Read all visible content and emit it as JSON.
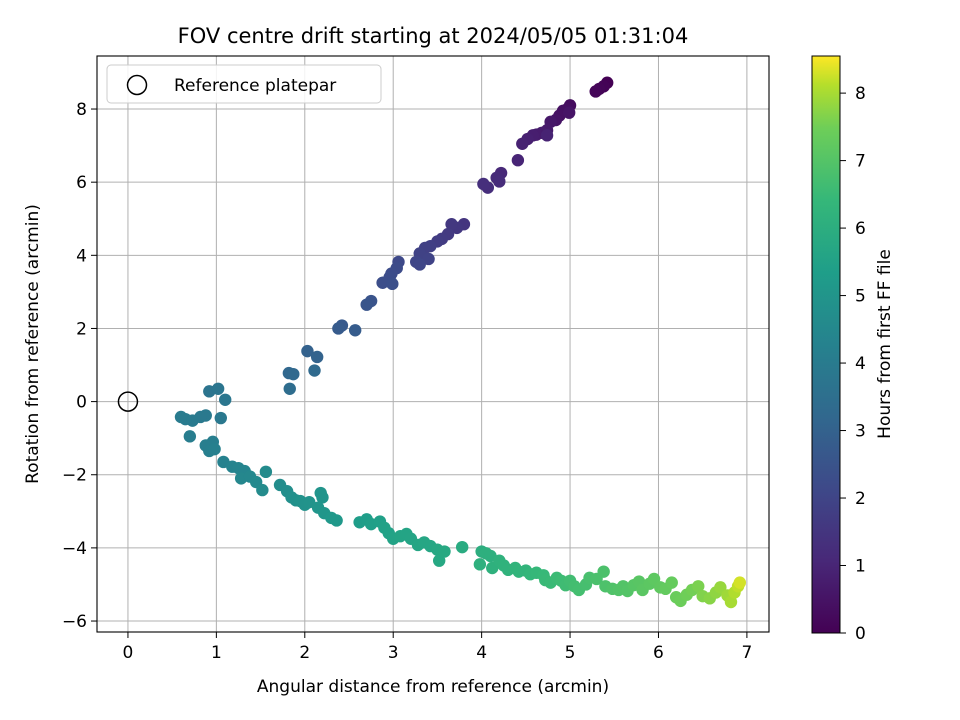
{
  "chart_data": {
    "type": "scatter",
    "title": "FOV centre drift starting at 2024/05/05 01:31:04",
    "xlabel": "Angular distance from reference (arcmin)",
    "ylabel": "Rotation from reference (arcmin)",
    "xlim": [
      -0.35,
      7.25
    ],
    "ylim": [
      -6.3,
      9.45
    ],
    "xticks": [
      0,
      1,
      2,
      3,
      4,
      5,
      6,
      7
    ],
    "xtick_labels": [
      "0",
      "1",
      "2",
      "3",
      "4",
      "5",
      "6",
      "7"
    ],
    "yticks": [
      -6,
      -4,
      -2,
      0,
      2,
      4,
      6,
      8
    ],
    "ytick_labels": [
      "−6",
      "−4",
      "−2",
      "0",
      "2",
      "4",
      "6",
      "8"
    ],
    "grid": true,
    "legend": {
      "placement": "top-left",
      "entries": [
        "Reference platepar"
      ]
    },
    "reference_point": {
      "x": 0,
      "y": 0,
      "label": "Reference platepar"
    },
    "colorbar": {
      "label": "Hours from first FF file",
      "range": [
        0,
        8.55
      ],
      "ticks": [
        0,
        1,
        2,
        3,
        4,
        5,
        6,
        7,
        8
      ],
      "tick_labels": [
        "0",
        "1",
        "2",
        "3",
        "4",
        "5",
        "6",
        "7",
        "8"
      ],
      "colormap": "viridis"
    },
    "points": [
      [
        5.42,
        8.72,
        0.0
      ],
      [
        5.38,
        8.62,
        0.05
      ],
      [
        5.33,
        8.55,
        0.1
      ],
      [
        5.29,
        8.48,
        0.15
      ],
      [
        5.0,
        8.1,
        0.3
      ],
      [
        4.97,
        8.0,
        0.35
      ],
      [
        4.92,
        7.95,
        0.4
      ],
      [
        4.88,
        7.82,
        0.45
      ],
      [
        4.84,
        7.7,
        0.5
      ],
      [
        4.99,
        7.9,
        0.52
      ],
      [
        4.78,
        7.65,
        0.6
      ],
      [
        4.74,
        7.42,
        0.65
      ],
      [
        4.68,
        7.35,
        0.7
      ],
      [
        4.62,
        7.3,
        0.75
      ],
      [
        4.58,
        7.28,
        0.8
      ],
      [
        4.52,
        7.18,
        0.85
      ],
      [
        4.46,
        7.05,
        0.9
      ],
      [
        4.74,
        7.28,
        0.92
      ],
      [
        4.41,
        6.6,
        1.0
      ],
      [
        4.22,
        6.25,
        1.1
      ],
      [
        4.17,
        6.12,
        1.15
      ],
      [
        4.2,
        6.02,
        1.2
      ],
      [
        4.07,
        5.85,
        1.25
      ],
      [
        4.02,
        5.95,
        1.3
      ],
      [
        3.8,
        4.85,
        1.5
      ],
      [
        3.72,
        4.75,
        1.55
      ],
      [
        3.66,
        4.85,
        1.6
      ],
      [
        3.62,
        4.58,
        1.65
      ],
      [
        3.55,
        4.45,
        1.7
      ],
      [
        3.5,
        4.38,
        1.75
      ],
      [
        3.42,
        4.25,
        1.8
      ],
      [
        3.36,
        4.2,
        1.85
      ],
      [
        3.3,
        4.05,
        1.9
      ],
      [
        3.4,
        3.9,
        1.95
      ],
      [
        3.26,
        3.82,
        2.0
      ],
      [
        3.3,
        3.75,
        2.05
      ],
      [
        3.06,
        3.82,
        2.15
      ],
      [
        3.04,
        3.65,
        2.2
      ],
      [
        2.98,
        3.5,
        2.25
      ],
      [
        2.96,
        3.4,
        2.28
      ],
      [
        2.88,
        3.25,
        2.3
      ],
      [
        2.99,
        3.22,
        2.35
      ],
      [
        2.75,
        2.75,
        2.5
      ],
      [
        2.7,
        2.65,
        2.55
      ],
      [
        2.42,
        2.08,
        2.7
      ],
      [
        2.38,
        2.0,
        2.75
      ],
      [
        2.57,
        1.95,
        2.8
      ],
      [
        2.03,
        1.38,
        3.0
      ],
      [
        2.14,
        1.22,
        3.05
      ],
      [
        1.82,
        0.78,
        3.2
      ],
      [
        1.87,
        0.75,
        3.25
      ],
      [
        2.11,
        0.85,
        3.3
      ],
      [
        1.83,
        0.35,
        3.4
      ],
      [
        0.92,
        0.28,
        3.7
      ],
      [
        1.02,
        0.35,
        3.75
      ],
      [
        1.1,
        0.05,
        3.8
      ],
      [
        1.05,
        -0.45,
        3.85
      ],
      [
        0.88,
        -0.38,
        3.9
      ],
      [
        0.82,
        -0.42,
        3.92
      ],
      [
        0.73,
        -0.52,
        3.95
      ],
      [
        0.65,
        -0.48,
        3.98
      ],
      [
        0.6,
        -0.42,
        4.0
      ],
      [
        0.7,
        -0.95,
        4.05
      ],
      [
        0.96,
        -1.1,
        4.1
      ],
      [
        0.88,
        -1.2,
        4.12
      ],
      [
        0.92,
        -1.35,
        4.15
      ],
      [
        0.98,
        -1.3,
        4.18
      ],
      [
        1.08,
        -1.65,
        4.25
      ],
      [
        1.18,
        -1.78,
        4.3
      ],
      [
        1.25,
        -1.82,
        4.35
      ],
      [
        1.32,
        -1.9,
        4.38
      ],
      [
        1.28,
        -2.1,
        4.45
      ],
      [
        1.38,
        -2.05,
        4.48
      ],
      [
        1.45,
        -2.2,
        4.55
      ],
      [
        1.52,
        -2.42,
        4.6
      ],
      [
        1.56,
        -1.92,
        4.62
      ],
      [
        1.72,
        -2.28,
        4.7
      ],
      [
        1.8,
        -2.45,
        4.75
      ],
      [
        1.85,
        -2.62,
        4.8
      ],
      [
        1.9,
        -2.7,
        4.82
      ],
      [
        1.95,
        -2.72,
        4.88
      ],
      [
        2.0,
        -2.82,
        4.9
      ],
      [
        2.05,
        -2.75,
        4.93
      ],
      [
        2.18,
        -2.5,
        4.95
      ],
      [
        2.2,
        -2.62,
        4.98
      ],
      [
        2.15,
        -2.9,
        5.0
      ],
      [
        2.22,
        -3.05,
        5.05
      ],
      [
        2.3,
        -3.18,
        5.1
      ],
      [
        2.36,
        -3.25,
        5.12
      ],
      [
        2.62,
        -3.3,
        5.3
      ],
      [
        2.7,
        -3.22,
        5.35
      ],
      [
        2.75,
        -3.35,
        5.4
      ],
      [
        2.85,
        -3.28,
        5.42
      ],
      [
        2.9,
        -3.45,
        5.48
      ],
      [
        2.95,
        -3.6,
        5.5
      ],
      [
        3.0,
        -3.75,
        5.55
      ],
      [
        3.08,
        -3.68,
        5.58
      ],
      [
        3.15,
        -3.62,
        5.6
      ],
      [
        3.2,
        -3.75,
        5.62
      ],
      [
        3.28,
        -3.92,
        5.65
      ],
      [
        3.35,
        -3.85,
        5.68
      ],
      [
        3.42,
        -3.95,
        5.7
      ],
      [
        3.5,
        -4.05,
        5.72
      ],
      [
        3.52,
        -4.35,
        5.75
      ],
      [
        3.58,
        -4.1,
        5.78
      ],
      [
        3.78,
        -3.98,
        5.9
      ],
      [
        4.0,
        -4.1,
        6.0
      ],
      [
        4.05,
        -4.15,
        6.05
      ],
      [
        4.1,
        -4.22,
        6.08
      ],
      [
        3.98,
        -4.45,
        6.1
      ],
      [
        4.12,
        -4.55,
        6.12
      ],
      [
        4.2,
        -4.35,
        6.15
      ],
      [
        4.25,
        -4.48,
        6.18
      ],
      [
        4.3,
        -4.6,
        6.22
      ],
      [
        4.38,
        -4.55,
        6.25
      ],
      [
        4.42,
        -4.65,
        6.28
      ],
      [
        4.5,
        -4.62,
        6.3
      ],
      [
        4.55,
        -4.72,
        6.35
      ],
      [
        4.62,
        -4.68,
        6.4
      ],
      [
        4.7,
        -4.75,
        6.45
      ],
      [
        4.72,
        -4.88,
        6.48
      ],
      [
        4.78,
        -4.95,
        6.5
      ],
      [
        4.85,
        -4.82,
        6.55
      ],
      [
        4.9,
        -4.9,
        6.58
      ],
      [
        4.95,
        -5.02,
        6.62
      ],
      [
        5.0,
        -4.9,
        6.65
      ],
      [
        5.05,
        -5.05,
        6.7
      ],
      [
        5.1,
        -5.15,
        6.72
      ],
      [
        5.18,
        -5.0,
        6.75
      ],
      [
        5.22,
        -4.82,
        6.78
      ],
      [
        5.3,
        -4.85,
        6.82
      ],
      [
        5.38,
        -4.65,
        6.85
      ],
      [
        5.4,
        -5.05,
        6.88
      ],
      [
        5.48,
        -5.12,
        6.92
      ],
      [
        5.55,
        -5.15,
        6.95
      ],
      [
        5.6,
        -5.05,
        6.98
      ],
      [
        5.65,
        -5.18,
        7.0
      ],
      [
        5.72,
        -5.02,
        7.05
      ],
      [
        5.78,
        -4.92,
        7.08
      ],
      [
        5.82,
        -5.15,
        7.12
      ],
      [
        5.9,
        -4.98,
        7.15
      ],
      [
        5.95,
        -4.85,
        7.18
      ],
      [
        6.02,
        -5.08,
        7.22
      ],
      [
        6.08,
        -5.12,
        7.28
      ],
      [
        6.15,
        -4.95,
        7.32
      ],
      [
        6.2,
        -5.35,
        7.38
      ],
      [
        6.25,
        -5.45,
        7.42
      ],
      [
        6.32,
        -5.28,
        7.48
      ],
      [
        6.38,
        -5.15,
        7.52
      ],
      [
        6.45,
        -5.05,
        7.6
      ],
      [
        6.5,
        -5.32,
        7.65
      ],
      [
        6.58,
        -5.38,
        7.72
      ],
      [
        6.65,
        -5.22,
        7.78
      ],
      [
        6.7,
        -5.08,
        7.85
      ],
      [
        6.78,
        -5.3,
        7.92
      ],
      [
        6.82,
        -5.48,
        8.0
      ],
      [
        6.86,
        -5.22,
        8.08
      ],
      [
        6.9,
        -5.05,
        8.18
      ],
      [
        6.92,
        -4.95,
        8.3
      ]
    ]
  }
}
